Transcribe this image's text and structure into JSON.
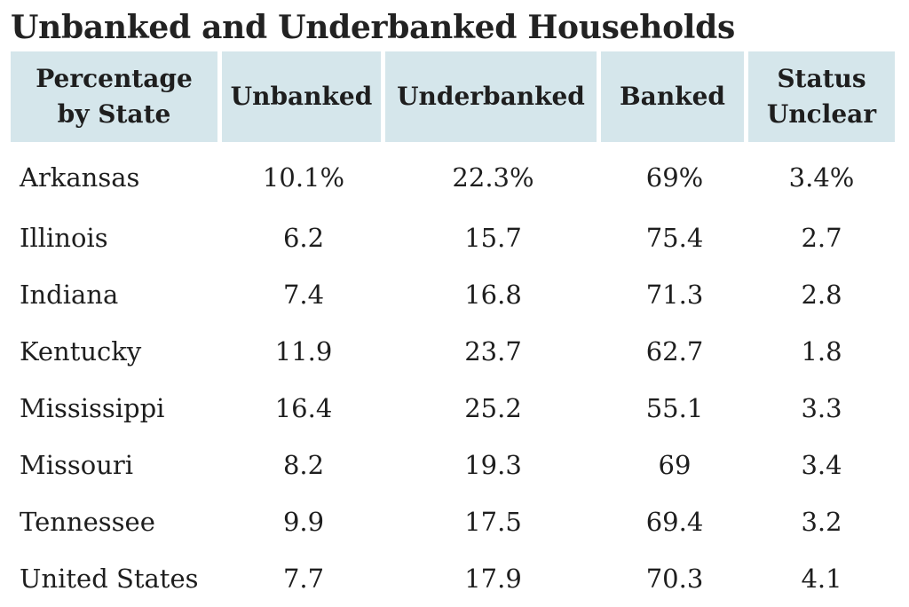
{
  "title": "Unbanked and Underbanked Households",
  "table": {
    "headers": [
      "Percentage by State",
      "Unbanked",
      "Underbanked",
      "Banked",
      "Status Unclear"
    ],
    "rows": [
      {
        "state": "Arkansas",
        "unbanked": "10.1%",
        "underbanked": "22.3%",
        "banked": "69%",
        "unclear": "3.4%"
      },
      {
        "state": "Illinois",
        "unbanked": "6.2",
        "underbanked": "15.7",
        "banked": "75.4",
        "unclear": "2.7"
      },
      {
        "state": "Indiana",
        "unbanked": "7.4",
        "underbanked": "16.8",
        "banked": "71.3",
        "unclear": "2.8"
      },
      {
        "state": "Kentucky",
        "unbanked": "11.9",
        "underbanked": "23.7",
        "banked": "62.7",
        "unclear": "1.8"
      },
      {
        "state": "Mississippi",
        "unbanked": "16.4",
        "underbanked": "25.2",
        "banked": "55.1",
        "unclear": "3.3"
      },
      {
        "state": "Missouri",
        "unbanked": "8.2",
        "underbanked": "19.3",
        "banked": "69",
        "unclear": "3.4"
      },
      {
        "state": "Tennessee",
        "unbanked": "9.9",
        "underbanked": "17.5",
        "banked": "69.4",
        "unclear": "3.2"
      },
      {
        "state": "United States",
        "unbanked": "7.7",
        "underbanked": "17.9",
        "banked": "70.3",
        "unclear": "4.1"
      }
    ]
  },
  "colors": {
    "header_background": "#d5e6eb",
    "text": "#1e1e1e",
    "background": "#ffffff"
  }
}
